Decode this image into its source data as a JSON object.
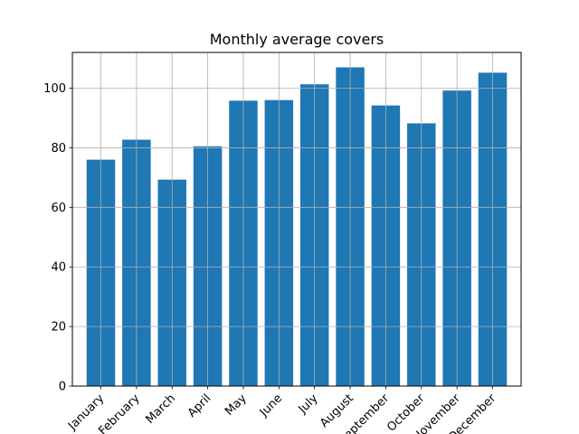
{
  "chart_data": {
    "type": "bar",
    "title": "Monthly average covers",
    "xlabel": "",
    "ylabel": "",
    "categories": [
      "January",
      "February",
      "March",
      "April",
      "May",
      "June",
      "July",
      "August",
      "September",
      "October",
      "November",
      "December"
    ],
    "values": [
      76.0,
      82.7,
      69.3,
      80.5,
      95.8,
      96.0,
      101.3,
      107.0,
      94.2,
      88.2,
      99.2,
      105.2
    ],
    "ylim": [
      0,
      112
    ],
    "yticks": [
      0,
      20,
      40,
      60,
      80,
      100
    ],
    "grid": true,
    "bar_color": "#1f77b4",
    "xtick_rotation": 45
  }
}
